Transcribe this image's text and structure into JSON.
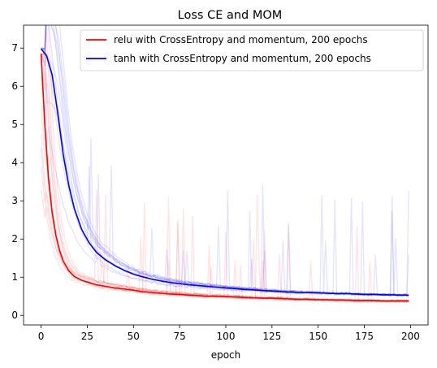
{
  "chart_data": {
    "type": "line",
    "title": "Loss CE and MOM",
    "xlabel": "epoch",
    "ylabel": "",
    "xlim": [
      -9.5,
      209.5
    ],
    "ylim": [
      -0.25,
      7.6
    ],
    "xticks": [
      0,
      25,
      50,
      75,
      100,
      125,
      150,
      175,
      200
    ],
    "yticks": [
      0,
      1,
      2,
      3,
      4,
      5,
      6,
      7
    ],
    "grid": false,
    "legend_position": "top-right",
    "series": [
      {
        "name": "relu with CrossEntropy and momentum, 200 epochs",
        "color": "#ff0000",
        "x": [
          0,
          2,
          4,
          6,
          8,
          10,
          12,
          15,
          18,
          22,
          26,
          30,
          35,
          40,
          45,
          50,
          55,
          60,
          65,
          70,
          75,
          80,
          85,
          90,
          95,
          100,
          105,
          110,
          115,
          120,
          125,
          130,
          135,
          140,
          145,
          150,
          155,
          160,
          165,
          170,
          175,
          180,
          185,
          190,
          195,
          199
        ],
        "y": [
          6.85,
          5.0,
          3.6,
          2.7,
          2.1,
          1.7,
          1.42,
          1.17,
          1.02,
          0.92,
          0.86,
          0.8,
          0.76,
          0.72,
          0.69,
          0.66,
          0.62,
          0.6,
          0.58,
          0.56,
          0.55,
          0.53,
          0.52,
          0.5,
          0.5,
          0.49,
          0.48,
          0.47,
          0.46,
          0.45,
          0.45,
          0.44,
          0.43,
          0.42,
          0.42,
          0.41,
          0.41,
          0.4,
          0.4,
          0.39,
          0.39,
          0.39,
          0.38,
          0.38,
          0.38,
          0.38
        ]
      },
      {
        "name": "tanh with CrossEntropy and momentum, 200 epochs",
        "color": "#0000ff",
        "x": [
          0,
          3,
          6,
          9,
          12,
          15,
          18,
          22,
          26,
          30,
          35,
          40,
          45,
          50,
          55,
          60,
          65,
          70,
          75,
          80,
          85,
          90,
          95,
          100,
          105,
          110,
          115,
          120,
          125,
          130,
          135,
          140,
          145,
          150,
          155,
          160,
          165,
          170,
          175,
          180,
          185,
          190,
          195,
          199
        ],
        "y": [
          6.98,
          6.8,
          6.3,
          5.3,
          4.2,
          3.4,
          2.8,
          2.25,
          1.9,
          1.65,
          1.45,
          1.3,
          1.18,
          1.08,
          1.01,
          0.95,
          0.9,
          0.86,
          0.83,
          0.8,
          0.78,
          0.76,
          0.74,
          0.72,
          0.7,
          0.68,
          0.67,
          0.65,
          0.64,
          0.62,
          0.61,
          0.6,
          0.6,
          0.59,
          0.58,
          0.57,
          0.57,
          0.56,
          0.55,
          0.55,
          0.54,
          0.54,
          0.53,
          0.53
        ]
      }
    ]
  }
}
